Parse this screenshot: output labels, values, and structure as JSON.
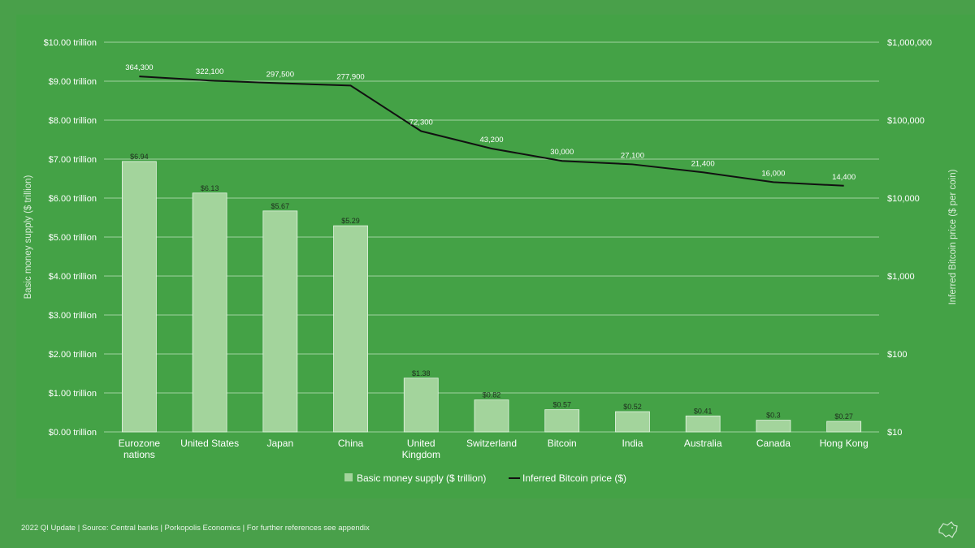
{
  "chart_data": {
    "type": "bar",
    "categories": [
      "Eurozone nations",
      "United States",
      "Japan",
      "China",
      "United Kingdom",
      "Switzerland",
      "Bitcoin",
      "India",
      "Australia",
      "Canada",
      "Hong Kong"
    ],
    "category_lines": [
      [
        "Eurozone",
        "nations"
      ],
      [
        "United States"
      ],
      [
        "Japan"
      ],
      [
        "China"
      ],
      [
        "United",
        "Kingdom"
      ],
      [
        "Switzerland"
      ],
      [
        "Bitcoin"
      ],
      [
        "India"
      ],
      [
        "Australia"
      ],
      [
        "Canada"
      ],
      [
        "Hong Kong"
      ]
    ],
    "series": [
      {
        "name": "Basic money supply ($ trillion)",
        "type": "bar",
        "axis": "left",
        "values": [
          6.94,
          6.13,
          5.67,
          5.29,
          1.38,
          0.82,
          0.57,
          0.52,
          0.41,
          0.3,
          0.27
        ],
        "labels": [
          "$6.94",
          "$6.13",
          "$5.67",
          "$5.29",
          "$1.38",
          "$0.82",
          "$0.57",
          "$0.52",
          "$0.41",
          "$0.3",
          "$0.27"
        ]
      },
      {
        "name": "Inferred Bitcoin price ($)",
        "type": "line",
        "axis": "right",
        "values": [
          364300,
          322100,
          297500,
          277900,
          72300,
          43200,
          30000,
          27100,
          21400,
          16000,
          14400
        ],
        "labels": [
          "364,300",
          "322,100",
          "297,500",
          "277,900",
          "72,300",
          "43,200",
          "30,000",
          "27,100",
          "21,400",
          "16,000",
          "14,400"
        ]
      }
    ],
    "y_left": {
      "label": "Basic money supply ($ trillion)",
      "range": [
        0,
        10
      ],
      "ticks": [
        0,
        1,
        2,
        3,
        4,
        5,
        6,
        7,
        8,
        9,
        10
      ],
      "tick_labels": [
        "$0.00 trillion",
        "$1.00 trillion",
        "$2.00 trillion",
        "$3.00 trillion",
        "$4.00 trillion",
        "$5.00 trillion",
        "$6.00 trillion",
        "$7.00 trillion",
        "$8.00 trillion",
        "$9.00 trillion",
        "$10.00 trillion"
      ]
    },
    "y_right": {
      "label": "Inferred Bitcoin price ($ per coin)",
      "scale": "log",
      "range": [
        10,
        1000000
      ],
      "ticks": [
        10,
        100,
        1000,
        10000,
        100000,
        1000000
      ],
      "tick_labels": [
        "$10",
        "$100",
        "$1,000",
        "$10,000",
        "$100,000",
        "$1,000,000"
      ]
    },
    "grid": true,
    "legend_position": "bottom",
    "colors": {
      "bar": "#a3d49c",
      "line": "#111111",
      "grid": "#bfe0bf",
      "background": "#44a246"
    }
  },
  "footer": "2022 QI Update | Source: Central banks | Porkopolis Economics | For further references see appendix",
  "logo_icon": "pig-icon"
}
